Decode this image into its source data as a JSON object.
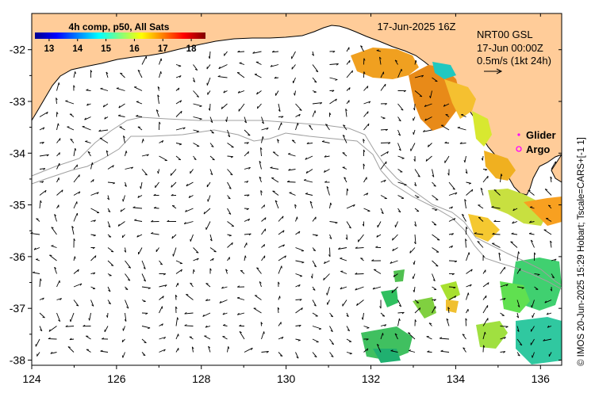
{
  "title": "4h comp, p50, All Sats",
  "colorbar": {
    "ticks": [
      "13",
      "14",
      "15",
      "16",
      "17",
      "18"
    ],
    "range": [
      12.5,
      18.5
    ],
    "colors": [
      "#00008f",
      "#0000ff",
      "#0080ff",
      "#00ffff",
      "#80ff80",
      "#ffff00",
      "#ff8000",
      "#ff0000",
      "#800000"
    ]
  },
  "date": "17-Jun-2025 16Z",
  "current_info": {
    "line1": "NRT00 GSL",
    "line2": "17-Jun 00:00Z",
    "line3": "0.5m/s (1kt 24h)"
  },
  "legend": {
    "glider": "Glider",
    "argo": "Argo",
    "glider_color": "#ff00ff",
    "argo_color": "#ff00ff"
  },
  "axes": {
    "x_ticks": [
      "124",
      "126",
      "128",
      "130",
      "132",
      "134",
      "136"
    ],
    "y_ticks": [
      "-32",
      "-33",
      "-34",
      "-35",
      "-36",
      "-37",
      "-38"
    ],
    "lon_range": [
      124,
      136.5
    ],
    "lat_range": [
      -31.3,
      -38.1
    ]
  },
  "colors": {
    "land": "#ffcc99",
    "ocean": "#ffffff",
    "bathymetry": "#a0a0a0",
    "arrows": "#000000"
  },
  "credit": "© IMOS 20-Jun-2025 15:29 Hobart; Tscale=CARS+[-1 1]"
}
